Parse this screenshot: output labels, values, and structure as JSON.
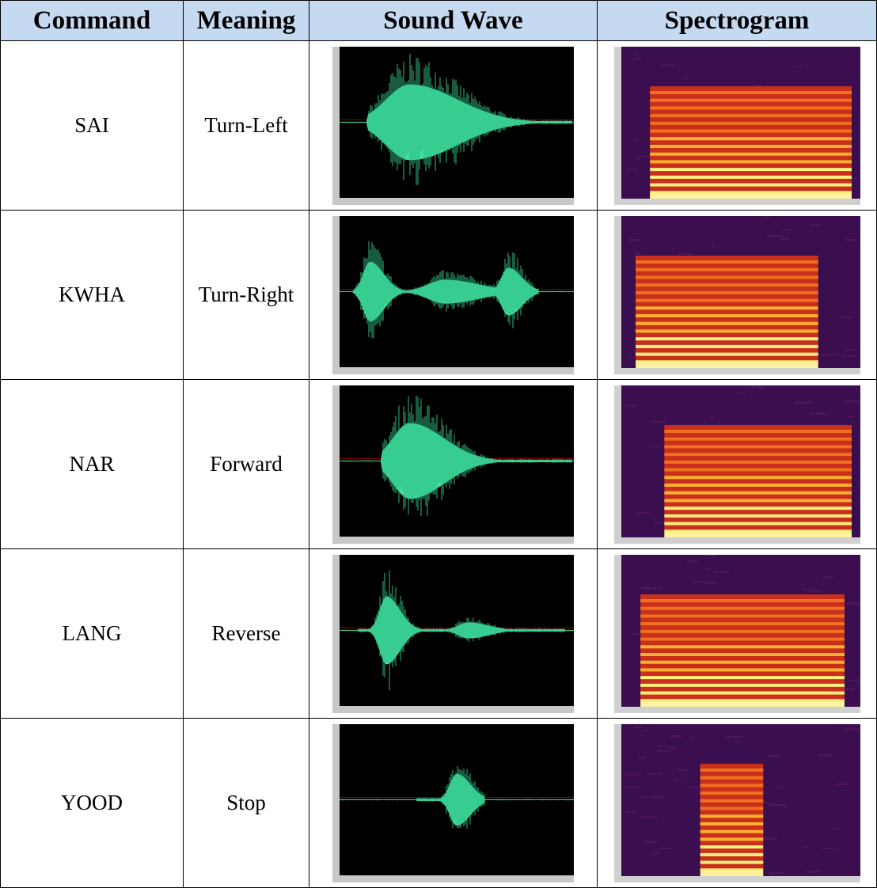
{
  "table": {
    "header": [
      "Command",
      "Meaning",
      "Sound Wave",
      "Spectrogram"
    ],
    "rows": [
      [
        "SAI",
        "Turn-Left"
      ],
      [
        "KWHA",
        "Turn-Right"
      ],
      [
        "NAR",
        "Forward"
      ],
      [
        "LANG",
        "Reverse"
      ],
      [
        "YOOD",
        "Stop"
      ]
    ]
  }
}
